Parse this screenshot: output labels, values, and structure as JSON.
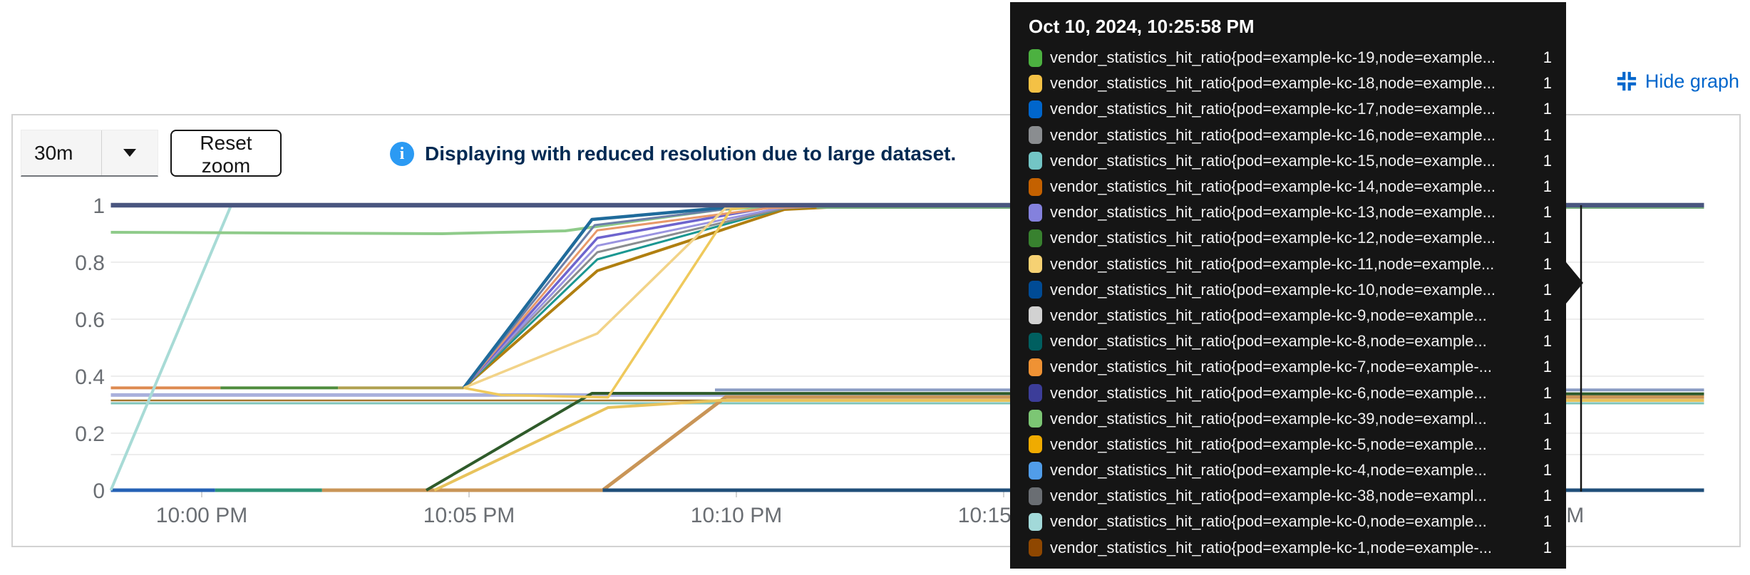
{
  "header": {
    "hide_graph_label": "Hide graph"
  },
  "controls": {
    "time_range_value": "30m",
    "reset_zoom_label": "Reset zoom",
    "alert_text": "Displaying with reduced resolution due to large dataset."
  },
  "colors": {
    "link_blue": "#0066cc",
    "info_icon_blue": "#2b9af3",
    "alert_title": "#002952",
    "tooltip_bg": "#151515",
    "axis_text": "#6a6e73",
    "gridline": "#ededed",
    "panel_border": "#d2d2d2"
  },
  "tooltip": {
    "title": "Oct 10, 2024, 10:25:58 PM",
    "rows": [
      {
        "color": "#4CB140",
        "label": "vendor_statistics_hit_ratio{pod=example-kc-19,node=example...",
        "value": "1"
      },
      {
        "color": "#F4C145",
        "label": "vendor_statistics_hit_ratio{pod=example-kc-18,node=example...",
        "value": "1"
      },
      {
        "color": "#0066CC",
        "label": "vendor_statistics_hit_ratio{pod=example-kc-17,node=example...",
        "value": "1"
      },
      {
        "color": "#8A8D90",
        "label": "vendor_statistics_hit_ratio{pod=example-kc-16,node=example...",
        "value": "1"
      },
      {
        "color": "#73C5C5",
        "label": "vendor_statistics_hit_ratio{pod=example-kc-15,node=example...",
        "value": "1"
      },
      {
        "color": "#C46100",
        "label": "vendor_statistics_hit_ratio{pod=example-kc-14,node=example...",
        "value": "1"
      },
      {
        "color": "#8481DD",
        "label": "vendor_statistics_hit_ratio{pod=example-kc-13,node=example...",
        "value": "1"
      },
      {
        "color": "#38812F",
        "label": "vendor_statistics_hit_ratio{pod=example-kc-12,node=example...",
        "value": "1"
      },
      {
        "color": "#F6D173",
        "label": "vendor_statistics_hit_ratio{pod=example-kc-11,node=example...",
        "value": "1"
      },
      {
        "color": "#004B95",
        "label": "vendor_statistics_hit_ratio{pod=example-kc-10,node=example...",
        "value": "1"
      },
      {
        "color": "#D2D2D2",
        "label": "vendor_statistics_hit_ratio{pod=example-kc-9,node=example...",
        "value": "1"
      },
      {
        "color": "#005F60",
        "label": "vendor_statistics_hit_ratio{pod=example-kc-8,node=example...",
        "value": "1"
      },
      {
        "color": "#EF9234",
        "label": "vendor_statistics_hit_ratio{pod=example-kc-7,node=example-...",
        "value": "1"
      },
      {
        "color": "#3C3D99",
        "label": "vendor_statistics_hit_ratio{pod=example-kc-6,node=example...",
        "value": "1"
      },
      {
        "color": "#7CC674",
        "label": "vendor_statistics_hit_ratio{pod=example-kc-39,node=exampl...",
        "value": "1"
      },
      {
        "color": "#F0AB00",
        "label": "vendor_statistics_hit_ratio{pod=example-kc-5,node=example...",
        "value": "1"
      },
      {
        "color": "#519DE9",
        "label": "vendor_statistics_hit_ratio{pod=example-kc-4,node=example...",
        "value": "1"
      },
      {
        "color": "#6A6E73",
        "label": "vendor_statistics_hit_ratio{pod=example-kc-38,node=exampl...",
        "value": "1"
      },
      {
        "color": "#A2D9D9",
        "label": "vendor_statistics_hit_ratio{pod=example-kc-0,node=example...",
        "value": "1"
      },
      {
        "color": "#8F4700",
        "label": "vendor_statistics_hit_ratio{pod=example-kc-1,node=example-...",
        "value": "1"
      }
    ]
  },
  "chart_data": {
    "type": "line",
    "metric": "vendor_statistics_hit_ratio",
    "x_unit": "minutes relative to 10:00 PM",
    "x_range_minutes": [
      -1.7,
      28.1
    ],
    "ylim": [
      0,
      1
    ],
    "grid": true,
    "x_ticks": [
      {
        "label": "10:00 PM",
        "t": 0
      },
      {
        "label": "10:05 PM",
        "t": 5
      },
      {
        "label": "10:10 PM",
        "t": 10
      },
      {
        "label": "10:15 PM",
        "t": 15
      },
      {
        "label": "10:20 PM",
        "t": 20
      },
      {
        "label": "10:25 PM",
        "t": 25
      }
    ],
    "y_ticks": [
      {
        "label": "0",
        "v": 0
      },
      {
        "label": "0.2",
        "v": 0.2
      },
      {
        "label": "0.4",
        "v": 0.4
      },
      {
        "label": "0.6",
        "v": 0.6
      },
      {
        "label": "0.8",
        "v": 0.8
      },
      {
        "label": "1",
        "v": 1
      }
    ],
    "cursor": {
      "t": 25.8,
      "time_label": "10:25:58 PM"
    },
    "series": [
      {
        "name": "flat-faint-gray",
        "color": "#ededed",
        "width": 2,
        "points": [
          [
            -1.7,
            0.125
          ],
          [
            28.1,
            0.125
          ]
        ]
      },
      {
        "name": "flat-teal",
        "color": "#7fc4ba",
        "width": 3,
        "points": [
          [
            -1.7,
            0.305
          ],
          [
            28.1,
            0.305
          ]
        ]
      },
      {
        "name": "flat-brown",
        "color": "#a4762f",
        "width": 2.5,
        "points": [
          [
            -1.7,
            0.315
          ],
          [
            28.1,
            0.315
          ]
        ]
      },
      {
        "name": "flat-lavender",
        "color": "#a9b0dc",
        "width": 5,
        "points": [
          [
            -1.7,
            0.334
          ],
          [
            28.1,
            0.334
          ]
        ]
      },
      {
        "name": "seg-orange",
        "color": "#dd8a50",
        "width": 4,
        "points": [
          [
            -1.7,
            0.359
          ],
          [
            0.35,
            0.359
          ]
        ]
      },
      {
        "name": "seg-green",
        "color": "#4e8c3c",
        "width": 4,
        "points": [
          [
            0.35,
            0.359
          ],
          [
            2.55,
            0.359
          ]
        ]
      },
      {
        "name": "seg-olive",
        "color": "#afa04f",
        "width": 4,
        "points": [
          [
            2.55,
            0.359
          ],
          [
            4.9,
            0.359
          ]
        ]
      },
      {
        "name": "bottom-blue",
        "color": "#2461b5",
        "width": 5,
        "points": [
          [
            -1.7,
            0
          ],
          [
            0.25,
            0
          ]
        ]
      },
      {
        "name": "bottom-seagreen",
        "color": "#2e9578",
        "width": 5,
        "points": [
          [
            0.25,
            0
          ],
          [
            2.25,
            0
          ]
        ]
      },
      {
        "name": "bottom-tan",
        "color": "#c99557",
        "width": 5,
        "points": [
          [
            2.25,
            0
          ],
          [
            7.5,
            0
          ],
          [
            9.8,
            0.327
          ],
          [
            28.1,
            0.327
          ]
        ]
      },
      {
        "name": "bottom-navy",
        "color": "#1f4e79",
        "width": 5,
        "points": [
          [
            7.5,
            0
          ],
          [
            28.1,
            0
          ]
        ]
      },
      {
        "name": "riser-darkgreen",
        "color": "#2f5b2a",
        "width": 4,
        "points": [
          [
            4.2,
            0
          ],
          [
            7.3,
            0.34
          ],
          [
            28.1,
            0.338
          ]
        ]
      },
      {
        "name": "riser-gold-low",
        "color": "#e8c35c",
        "width": 4,
        "points": [
          [
            4.35,
            0
          ],
          [
            7.6,
            0.29
          ],
          [
            9.7,
            0.315
          ],
          [
            28.1,
            0.315
          ]
        ]
      },
      {
        "name": "diag-cyan",
        "color": "#a8dbd6",
        "width": 4,
        "points": [
          [
            -1.7,
            0
          ],
          [
            0.55,
            1
          ],
          [
            28.1,
            1
          ]
        ]
      },
      {
        "name": "light-green",
        "color": "#8fcb8a",
        "width": 4,
        "points": [
          [
            -1.7,
            0.905
          ],
          [
            4.5,
            0.9
          ],
          [
            6.8,
            0.91
          ],
          [
            9.7,
            0.985
          ],
          [
            11.2,
            1
          ],
          [
            28.1,
            1
          ]
        ]
      },
      {
        "name": "riser-darkgold",
        "color": "#b07f10",
        "width": 4,
        "points": [
          [
            4.9,
            0.359
          ],
          [
            7.4,
            0.77
          ],
          [
            10.9,
            0.985
          ],
          [
            12.5,
            1
          ],
          [
            28.1,
            1
          ]
        ]
      },
      {
        "name": "riser-teal",
        "color": "#1b9791",
        "width": 3,
        "points": [
          [
            4.9,
            0.359
          ],
          [
            7.4,
            0.81
          ],
          [
            10.9,
            0.99
          ],
          [
            12.1,
            1
          ],
          [
            28.1,
            1
          ]
        ]
      },
      {
        "name": "riser-gray",
        "color": "#8a8d90",
        "width": 3,
        "points": [
          [
            4.9,
            0.359
          ],
          [
            7.4,
            0.835
          ],
          [
            10.9,
            0.99
          ],
          [
            12,
            1
          ],
          [
            28.1,
            1
          ]
        ]
      },
      {
        "name": "riser-lavender",
        "color": "#9a94e0",
        "width": 3,
        "points": [
          [
            4.9,
            0.359
          ],
          [
            7.4,
            0.858
          ],
          [
            10.8,
            0.99
          ],
          [
            12,
            1
          ],
          [
            28.1,
            1
          ]
        ]
      },
      {
        "name": "riser-purple",
        "color": "#6e64ce",
        "width": 3.5,
        "points": [
          [
            4.9,
            0.359
          ],
          [
            7.4,
            0.885
          ],
          [
            10.7,
            0.995
          ],
          [
            12,
            1
          ],
          [
            28.1,
            1
          ]
        ]
      },
      {
        "name": "riser-salmon",
        "color": "#e8996a",
        "width": 3,
        "points": [
          [
            4.9,
            0.359
          ],
          [
            7.4,
            0.912
          ],
          [
            10.6,
            0.99
          ],
          [
            12.3,
            1
          ],
          [
            28.1,
            1
          ]
        ]
      },
      {
        "name": "riser-slate",
        "color": "#6c7fa8",
        "width": 3,
        "points": [
          [
            4.9,
            0.359
          ],
          [
            7.35,
            0.93
          ],
          [
            10.4,
            1
          ],
          [
            28.1,
            1
          ]
        ]
      },
      {
        "name": "riser-steelblue",
        "color": "#1f6b9b",
        "width": 4.5,
        "points": [
          [
            4.9,
            0.359
          ],
          [
            7.3,
            0.95
          ],
          [
            10.3,
            1
          ],
          [
            28.1,
            1
          ]
        ]
      },
      {
        "name": "riser-palegold",
        "color": "#f2d388",
        "width": 3.5,
        "points": [
          [
            4.9,
            0.359
          ],
          [
            7.4,
            0.55
          ],
          [
            9.8,
            0.99
          ],
          [
            10.4,
            1
          ],
          [
            28.1,
            1
          ]
        ]
      },
      {
        "name": "riser-brightgold",
        "color": "#efc95c",
        "width": 3.5,
        "points": [
          [
            4.9,
            0.359
          ],
          [
            5.6,
            0.334
          ],
          [
            7.6,
            0.326
          ],
          [
            9.9,
            0.985
          ],
          [
            10.4,
            1
          ],
          [
            28.1,
            1
          ]
        ]
      },
      {
        "name": "flat-bluegray",
        "color": "#8a9cc4",
        "width": 4,
        "points": [
          [
            9.6,
            0.352
          ],
          [
            28.1,
            0.352
          ]
        ]
      },
      {
        "name": "top-navy",
        "color": "#49557f",
        "width": 6.5,
        "points": [
          [
            -1.7,
            1
          ],
          [
            28.1,
            1
          ]
        ]
      },
      {
        "name": "thin-green-right",
        "color": "#74a87c",
        "width": 2,
        "points": [
          [
            11.5,
            0.99
          ],
          [
            28.1,
            0.99
          ]
        ]
      }
    ]
  }
}
